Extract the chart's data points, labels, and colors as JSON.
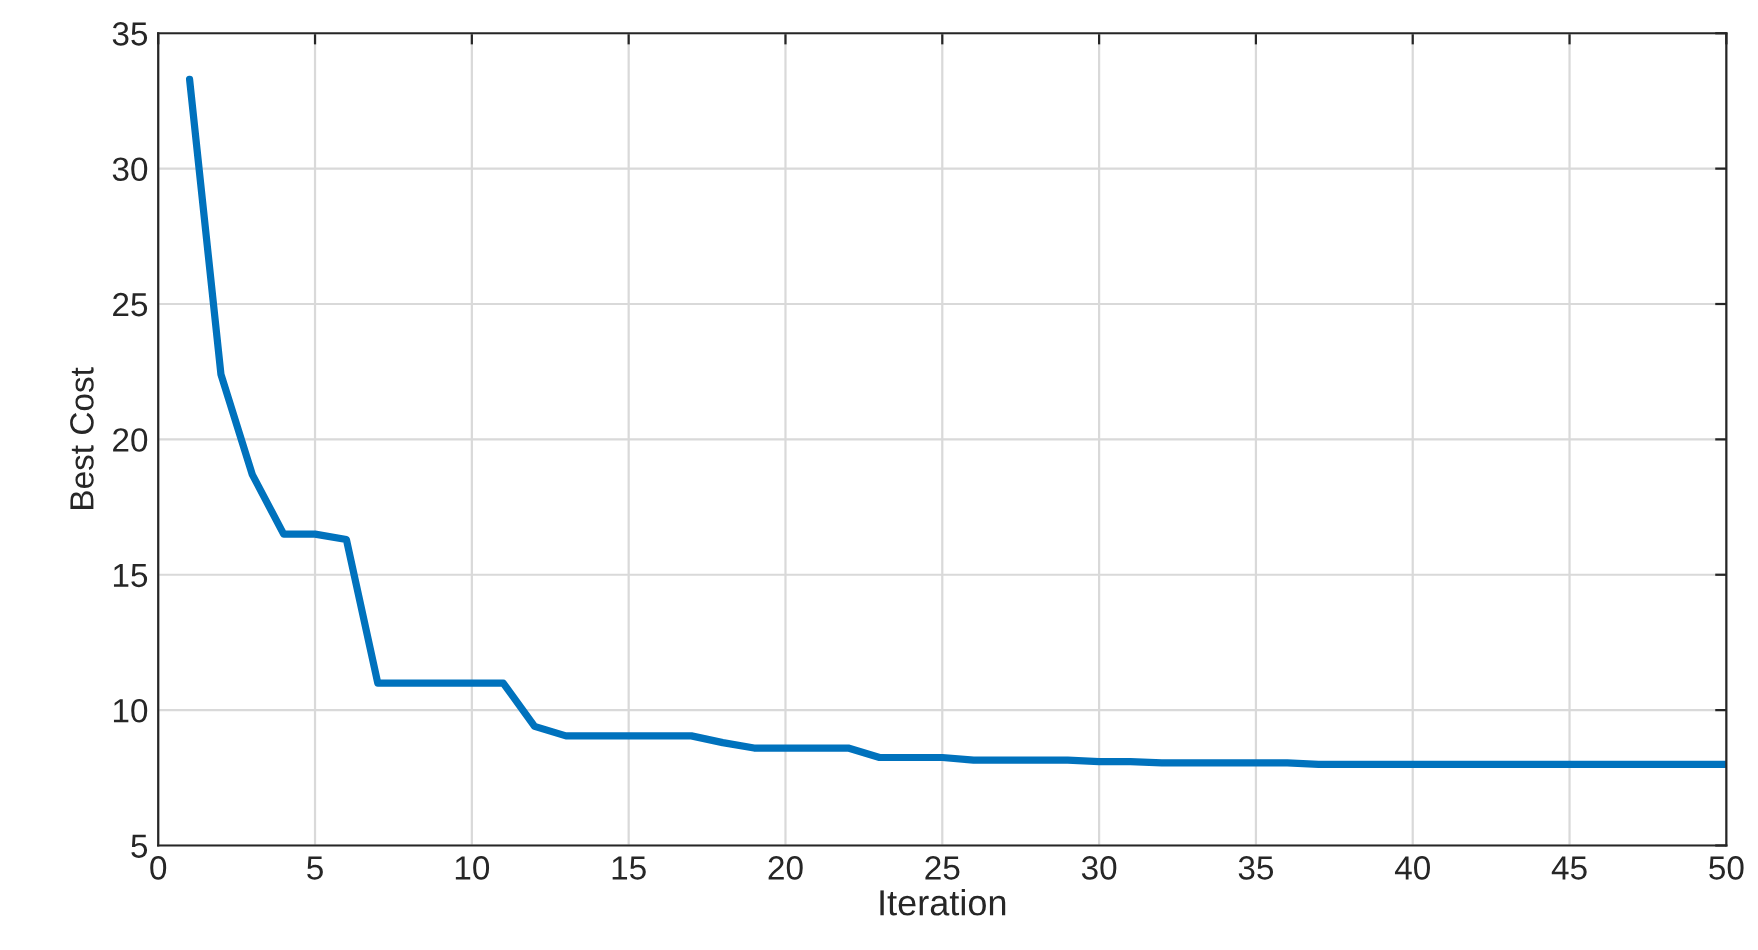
{
  "chart_data": {
    "type": "line",
    "xlabel": "Iteration",
    "ylabel": "Best Cost",
    "x": [
      1,
      2,
      3,
      4,
      5,
      6,
      7,
      8,
      9,
      10,
      11,
      12,
      13,
      14,
      15,
      16,
      17,
      18,
      19,
      20,
      21,
      22,
      23,
      24,
      25,
      26,
      27,
      28,
      29,
      30,
      31,
      32,
      33,
      34,
      35,
      36,
      37,
      38,
      39,
      40,
      41,
      42,
      43,
      44,
      45,
      46,
      47,
      48,
      49,
      50
    ],
    "series": [
      {
        "color": "#0072bd",
        "values": [
          33.3,
          22.4,
          18.7,
          16.5,
          16.5,
          16.3,
          11.0,
          11.0,
          11.0,
          11.0,
          11.0,
          9.4,
          9.05,
          9.05,
          9.05,
          9.05,
          9.05,
          8.8,
          8.6,
          8.6,
          8.6,
          8.6,
          8.25,
          8.25,
          8.25,
          8.15,
          8.15,
          8.15,
          8.15,
          8.1,
          8.1,
          8.05,
          8.05,
          8.05,
          8.05,
          8.05,
          8.0,
          8.0,
          8.0,
          8.0,
          8.0,
          8.0,
          8.0,
          8.0,
          8.0,
          8.0,
          8.0,
          8.0,
          8.0,
          8.0
        ]
      }
    ],
    "xlim": [
      0,
      50
    ],
    "xticks": [
      0,
      5,
      10,
      15,
      20,
      25,
      30,
      35,
      40,
      45,
      50
    ],
    "ylim": [
      5,
      35
    ],
    "yticks": [
      5,
      10,
      15,
      20,
      25,
      30,
      35
    ],
    "grid": true,
    "legend": false,
    "marker": "none",
    "line_style": "solid"
  }
}
